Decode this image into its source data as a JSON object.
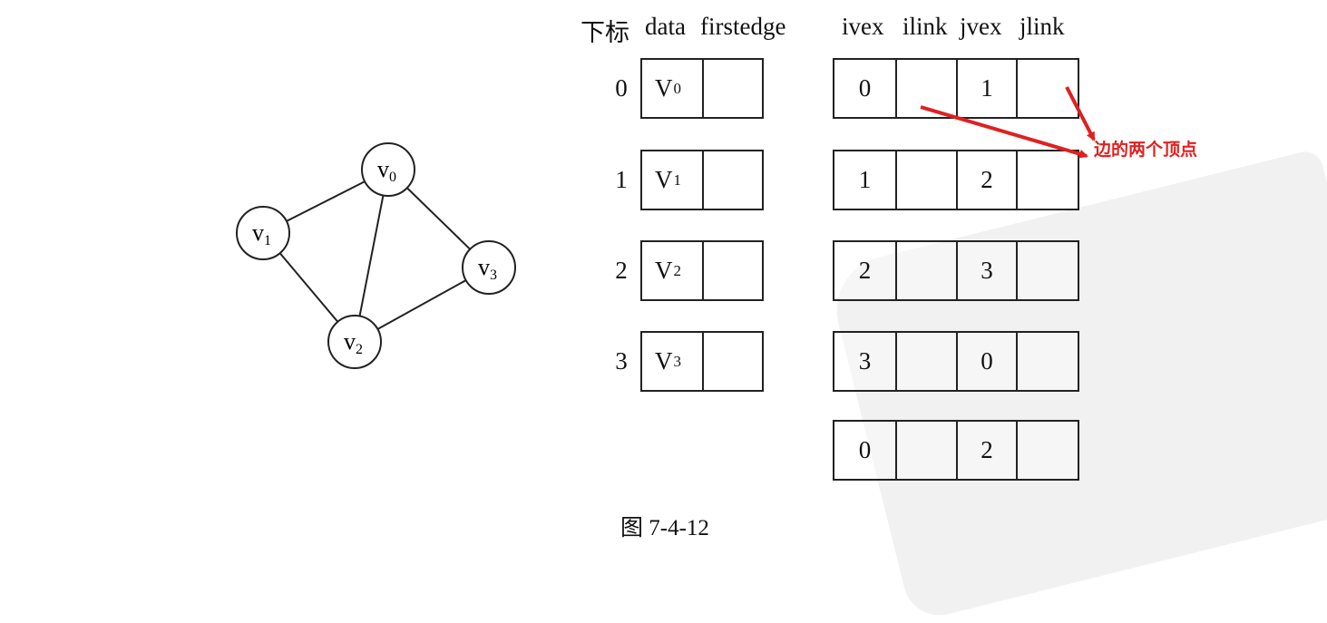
{
  "graph": {
    "vertices": [
      {
        "label": "v",
        "sub": "0"
      },
      {
        "label": "v",
        "sub": "1"
      },
      {
        "label": "v",
        "sub": "2"
      },
      {
        "label": "v",
        "sub": "3"
      }
    ],
    "edges": [
      [
        0,
        1
      ],
      [
        0,
        2
      ],
      [
        0,
        3
      ],
      [
        1,
        2
      ],
      [
        2,
        3
      ]
    ]
  },
  "headers": {
    "index": "下标",
    "data": "data",
    "firstedge": "firstedge",
    "ivex": "ivex",
    "ilink": "ilink",
    "jvex": "jvex",
    "jlink": "jlink"
  },
  "vertex_table": [
    {
      "index": "0",
      "data": "V",
      "sub": "0"
    },
    {
      "index": "1",
      "data": "V",
      "sub": "1"
    },
    {
      "index": "2",
      "data": "V",
      "sub": "2"
    },
    {
      "index": "3",
      "data": "V",
      "sub": "3"
    }
  ],
  "edge_table": [
    {
      "ivex": "0",
      "jvex": "1"
    },
    {
      "ivex": "1",
      "jvex": "2"
    },
    {
      "ivex": "2",
      "jvex": "3"
    },
    {
      "ivex": "3",
      "jvex": "0"
    },
    {
      "ivex": "0",
      "jvex": "2"
    }
  ],
  "annotation": {
    "text": "边的两个顶点",
    "color": "#e02020"
  },
  "caption": "图 7-4-12"
}
